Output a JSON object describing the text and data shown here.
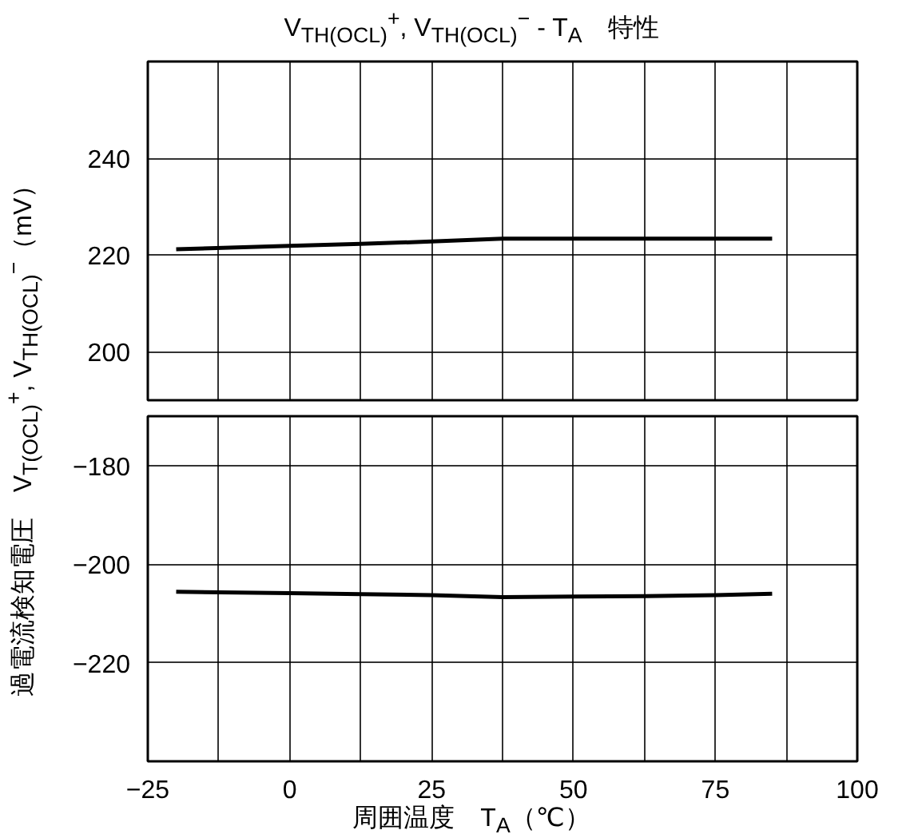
{
  "chart_data": [
    {
      "type": "line",
      "title": "V$_{TH(OCL)}$$^{+}$, V$_{TH(OCL)}$$^{−}$ - T$_{A}$　特性",
      "ylabel": "過電流検知電圧　V$_{T(OCL)}$$^{+}$, V$_{TH(OCL)}$$^{−}$（mV）",
      "x": [
        -20,
        0,
        12.5,
        25,
        37.5,
        50,
        62.5,
        75,
        85
      ],
      "series": [
        {
          "color": "#000000",
          "values": [
            221.2,
            221.9,
            222.3,
            222.8,
            223.4,
            223.4,
            223.4,
            223.4,
            223.4
          ]
        }
      ],
      "xlim": [
        -25,
        100
      ],
      "xticks": [
        -25,
        {
          "value": -12.5,
          "label": null
        },
        0,
        {
          "value": 12.5,
          "label": null
        },
        25,
        {
          "value": 37.5,
          "label": null
        },
        50,
        {
          "value": 62.5,
          "label": null
        },
        75,
        {
          "value": 87.5,
          "label": null
        },
        100
      ],
      "ylim": [
        190,
        260
      ],
      "yticks": [
        200,
        220,
        240
      ],
      "grid": true,
      "tick_labels": "y"
    },
    {
      "type": "line",
      "xlabel": "周囲温度　T$_{A}$（℃）",
      "x": [
        -20,
        0,
        12.5,
        25,
        37.5,
        50,
        62.5,
        75,
        85
      ],
      "series": [
        {
          "color": "#000000",
          "values": [
            -205.6,
            -205.9,
            -206.1,
            -206.3,
            -206.7,
            -206.6,
            -206.5,
            -206.3,
            -206.0
          ]
        }
      ],
      "xlim": [
        -25,
        100
      ],
      "xticks": [
        -25,
        {
          "value": -12.5,
          "label": null
        },
        0,
        {
          "value": 12.5,
          "label": null
        },
        25,
        {
          "value": 37.5,
          "label": null
        },
        50,
        {
          "value": 62.5,
          "label": null
        },
        75,
        {
          "value": 87.5,
          "label": null
        },
        100
      ],
      "ylim": [
        -240,
        -170
      ],
      "yticks": [
        -180,
        -200,
        -220
      ],
      "grid": true
    }
  ]
}
